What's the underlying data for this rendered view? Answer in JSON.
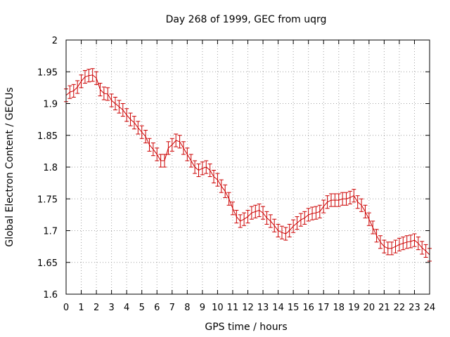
{
  "chart_data": {
    "type": "line",
    "title": "Day 268 of 1999, GEC from uqrg",
    "xlabel": "GPS time / hours",
    "ylabel": "Global Electron Content / GECUs",
    "xlim": [
      0,
      24
    ],
    "ylim": [
      1.6,
      2.0
    ],
    "x_ticks": [
      0,
      1,
      2,
      3,
      4,
      5,
      6,
      7,
      8,
      9,
      10,
      11,
      12,
      13,
      14,
      15,
      16,
      17,
      18,
      19,
      20,
      21,
      22,
      23,
      24
    ],
    "x_tick_labels": [
      "0",
      "1",
      "2",
      "3",
      "4",
      "5",
      "6",
      "7",
      "8",
      "9",
      "10",
      "11",
      "12",
      "13",
      "14",
      "15",
      "16",
      "17",
      "18",
      "19",
      "20",
      "21",
      "22",
      "23",
      "24"
    ],
    "y_ticks": [
      1.6,
      1.65,
      1.7,
      1.75,
      1.8,
      1.85,
      1.9,
      1.95,
      2.0
    ],
    "y_tick_labels": [
      "1.6",
      "1.65",
      "1.7",
      "1.75",
      "1.8",
      "1.85",
      "1.9",
      "1.95",
      "2"
    ],
    "grid": true,
    "series": [
      {
        "name": "GEC",
        "color": "#cc0000",
        "x": [
          0,
          0.25,
          0.5,
          0.75,
          1,
          1.25,
          1.5,
          1.75,
          2,
          2.25,
          2.5,
          2.75,
          3,
          3.25,
          3.5,
          3.75,
          4,
          4.25,
          4.5,
          4.75,
          5,
          5.25,
          5.5,
          5.75,
          6,
          6.25,
          6.5,
          6.75,
          7,
          7.25,
          7.5,
          7.75,
          8,
          8.25,
          8.5,
          8.75,
          9,
          9.25,
          9.5,
          9.75,
          10,
          10.25,
          10.5,
          10.75,
          11,
          11.25,
          11.5,
          11.75,
          12,
          12.25,
          12.5,
          12.75,
          13,
          13.25,
          13.5,
          13.75,
          14,
          14.25,
          14.5,
          14.75,
          15,
          15.25,
          15.5,
          15.75,
          16,
          16.25,
          16.5,
          16.75,
          17,
          17.25,
          17.5,
          17.75,
          18,
          18.25,
          18.5,
          18.75,
          19,
          19.25,
          19.5,
          19.75,
          20,
          20.25,
          20.5,
          20.75,
          21,
          21.25,
          21.5,
          21.75,
          22,
          22.25,
          22.5,
          22.75,
          23,
          23.25,
          23.5,
          23.75,
          24
        ],
        "y": [
          1.913,
          1.918,
          1.92,
          1.926,
          1.935,
          1.942,
          1.944,
          1.945,
          1.94,
          1.922,
          1.916,
          1.915,
          1.905,
          1.9,
          1.895,
          1.89,
          1.882,
          1.875,
          1.87,
          1.862,
          1.855,
          1.848,
          1.835,
          1.828,
          1.82,
          1.81,
          1.81,
          1.83,
          1.835,
          1.842,
          1.84,
          1.83,
          1.82,
          1.81,
          1.8,
          1.795,
          1.798,
          1.8,
          1.795,
          1.785,
          1.78,
          1.77,
          1.762,
          1.75,
          1.735,
          1.722,
          1.715,
          1.718,
          1.722,
          1.728,
          1.73,
          1.732,
          1.728,
          1.72,
          1.715,
          1.708,
          1.7,
          1.697,
          1.695,
          1.7,
          1.707,
          1.712,
          1.717,
          1.72,
          1.725,
          1.727,
          1.728,
          1.73,
          1.738,
          1.745,
          1.748,
          1.748,
          1.748,
          1.75,
          1.75,
          1.752,
          1.755,
          1.745,
          1.74,
          1.73,
          1.718,
          1.705,
          1.692,
          1.682,
          1.675,
          1.672,
          1.672,
          1.675,
          1.678,
          1.68,
          1.682,
          1.683,
          1.685,
          1.68,
          1.673,
          1.668,
          1.662
        ],
        "error": 0.01
      }
    ]
  }
}
